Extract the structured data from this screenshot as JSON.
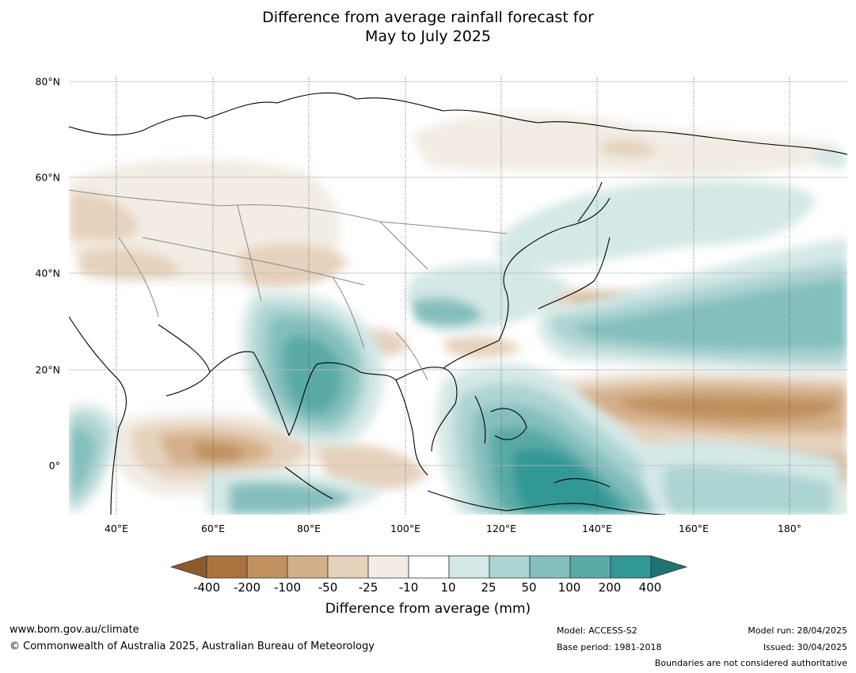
{
  "title": {
    "line1": "Difference from average rainfall forecast for",
    "line2": "May to July 2025"
  },
  "map": {
    "lon_range": [
      30,
      192
    ],
    "lat_range": [
      -10,
      80
    ],
    "lon_labels": [
      "40°E",
      "60°E",
      "80°E",
      "100°E",
      "120°E",
      "140°E",
      "160°E",
      "180°"
    ],
    "lon_ticks": [
      40,
      60,
      80,
      100,
      120,
      140,
      160,
      180
    ],
    "lat_labels": [
      "80°N",
      "60°N",
      "40°N",
      "20°N",
      "0°"
    ],
    "lat_ticks": [
      80,
      60,
      40,
      20,
      0
    ]
  },
  "colorbar": {
    "title": "Difference from average (mm)",
    "labels": [
      "-400",
      "-200",
      "-100",
      "-50",
      "-25",
      "-10",
      "10",
      "25",
      "50",
      "100",
      "200",
      "400"
    ],
    "colors": [
      "#8c5a2b",
      "#a9733e",
      "#c0915f",
      "#d4b08a",
      "#e6d2bc",
      "#f2ece4",
      "#ffffff",
      "#d4e8e6",
      "#acd4d2",
      "#84bfbd",
      "#5aaaa8",
      "#319895",
      "#1f7370"
    ]
  },
  "footer": {
    "website": "www.bom.gov.au/climate",
    "copyright": "© Commonwealth of Australia 2025, Australian Bureau of Meteorology",
    "model": "Model: ACCESS-S2",
    "base_period": "Base period: 1981-2018",
    "model_run": "Model run: 28/04/2025",
    "issued": "Issued: 30/04/2025",
    "disclaimer": "Boundaries are not considered authoritative"
  }
}
